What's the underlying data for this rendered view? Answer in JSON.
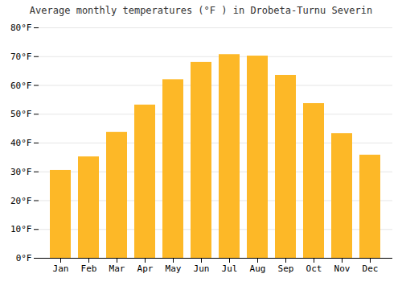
{
  "chart_data": {
    "type": "bar",
    "title": "Average monthly temperatures (°F ) in Drobeta-Turnu Severin",
    "categories": [
      "Jan",
      "Feb",
      "Mar",
      "Apr",
      "May",
      "Jun",
      "Jul",
      "Aug",
      "Sep",
      "Oct",
      "Nov",
      "Dec"
    ],
    "values": [
      30.5,
      35.2,
      43.7,
      53.2,
      62.0,
      68.0,
      70.7,
      70.2,
      63.5,
      53.7,
      43.3,
      35.8
    ],
    "color": "#FDB827",
    "ylim": [
      0,
      80
    ],
    "yticks": [
      {
        "value": 0,
        "label": "0°F"
      },
      {
        "value": 10,
        "label": "10°F"
      },
      {
        "value": 20,
        "label": "20°F"
      },
      {
        "value": 30,
        "label": "30°F"
      },
      {
        "value": 40,
        "label": "40°F"
      },
      {
        "value": 50,
        "label": "50°F"
      },
      {
        "value": 60,
        "label": "60°F"
      },
      {
        "value": 70,
        "label": "70°F"
      },
      {
        "value": 80,
        "label": "80°F"
      }
    ],
    "grid": true
  }
}
